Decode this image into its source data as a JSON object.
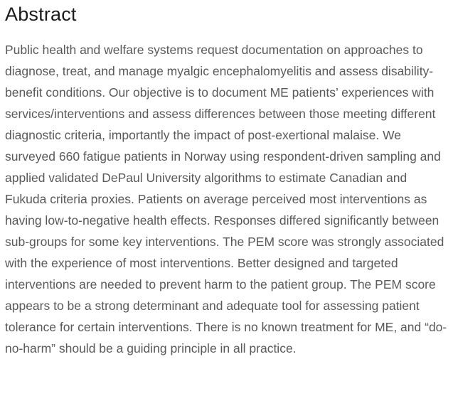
{
  "abstract": {
    "heading": "Abstract",
    "body": "Public health and welfare systems request documentation on approaches to diagnose, treat, and manage myalgic encephalomyelitis and assess disability-benefit conditions. Our objective is to document ME patients’ experiences with services/interventions and assess differences between those meeting different diagnostic criteria, importantly the impact of post-exertional malaise. We surveyed 660 fatigue patients in Norway using respondent-driven sampling and applied validated DePaul University algorithms to estimate Canadian and Fukuda criteria proxies. Patients on average perceived most interventions as having low-to-negative health effects. Responses differed significantly between sub-groups for some key interventions. The PEM score was strongly associated with the experience of most interventions. Better designed and targeted interventions are needed to prevent harm to the patient group. The PEM score appears to be a strong determinant and adequate tool for assessing patient tolerance for certain interventions. There is no known treatment for ME, and “do-no-harm” should be a guiding principle in all practice."
  },
  "colors": {
    "background": "#ffffff",
    "heading_text": "#1b1b1b",
    "body_text": "#595959"
  }
}
